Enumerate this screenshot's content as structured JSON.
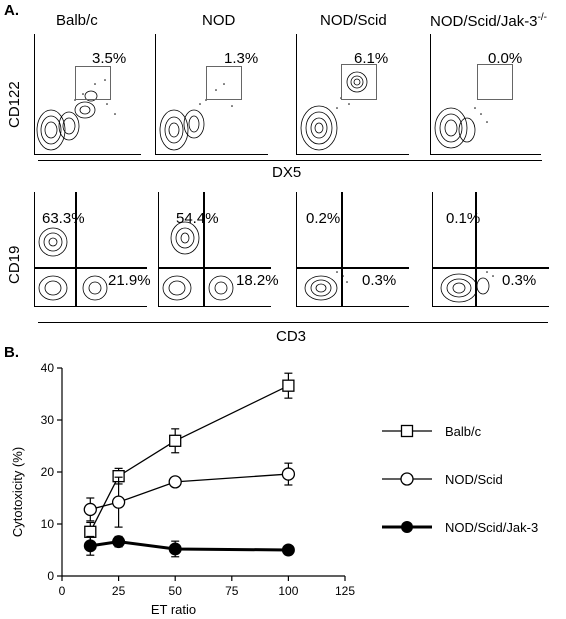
{
  "panelA": {
    "letter": "A.",
    "strains": [
      "Balb/c",
      "NOD",
      "NOD/Scid",
      "NOD/Scid/Jak-3"
    ],
    "superscript": "-/-",
    "row1": {
      "ylabel": "CD122",
      "xlabel": "DX5",
      "percentages": [
        "3.5%",
        "1.3%",
        "6.1%",
        "0.0%"
      ]
    },
    "row2": {
      "ylabel": "CD19",
      "xlabel": "CD3",
      "upper_left": [
        "63.3%",
        "54.4%",
        "0.2%",
        "0.1%"
      ],
      "lower_right": [
        "21.9%",
        "18.2%",
        "0.3%",
        "0.3%"
      ]
    }
  },
  "panelB": {
    "letter": "B."
  },
  "chart_data": {
    "type": "line",
    "xlabel": "ET ratio",
    "ylabel": "Cytotoxicity (%)",
    "xlim": [
      0,
      125
    ],
    "ylim": [
      0,
      40
    ],
    "xticks": [
      0,
      25,
      50,
      75,
      100,
      125
    ],
    "yticks": [
      0,
      10,
      20,
      30,
      40
    ],
    "grid": false,
    "legend_position": "right",
    "x": [
      12.5,
      25,
      50,
      100
    ],
    "series": [
      {
        "name": "Balb/c",
        "marker": "open-square",
        "values": [
          8.5,
          19.2,
          26.0,
          36.6
        ],
        "errors": [
          1.8,
          1.5,
          2.3,
          2.4
        ]
      },
      {
        "name": "NOD/Scid",
        "marker": "open-circle",
        "values": [
          12.8,
          14.2,
          18.1,
          19.6
        ],
        "errors": [
          2.2,
          4.8,
          0.5,
          2.1
        ]
      },
      {
        "name": "NOD/Scid/Jak-3",
        "marker": "filled-circle",
        "values": [
          5.8,
          6.6,
          5.2,
          5.0
        ],
        "errors": [
          1.8,
          1.0,
          1.5,
          0.5
        ]
      }
    ]
  }
}
